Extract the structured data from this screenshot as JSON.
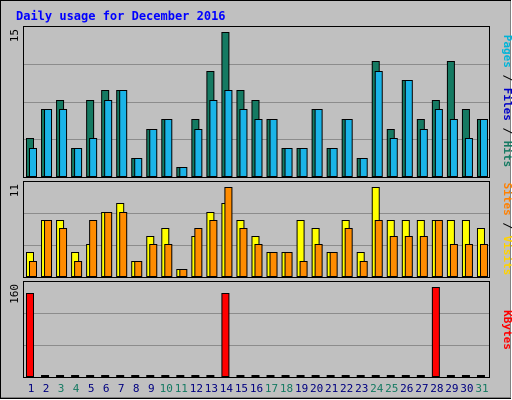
{
  "title": "Daily usage for December 2016",
  "colors": {
    "background": "#c0c0c0",
    "border": "#000000",
    "title": "#0000ff",
    "grid": "#8c8c8c",
    "hits": "#157a62",
    "files": "#1ab4e8",
    "sites": "#ffff00",
    "visits": "#ff8c00",
    "kbytes": "#ff0000",
    "weekend_label": "#157a62",
    "weekday_label": "#000080"
  },
  "side_labels": {
    "top": [
      {
        "text": "Pages",
        "color": "#00b4d8"
      },
      {
        "text": " / ",
        "color": "#000000"
      },
      {
        "text": "Files",
        "color": "#0000c8"
      },
      {
        "text": " / ",
        "color": "#000000"
      },
      {
        "text": "Hits",
        "color": "#157a62"
      }
    ],
    "mid": [
      {
        "text": "Sites",
        "color": "#ff8000"
      },
      {
        "text": " / ",
        "color": "#000000"
      },
      {
        "text": "Visits",
        "color": "#ffd200"
      }
    ],
    "bot": [
      {
        "text": "KBytes",
        "color": "#ff0000"
      }
    ]
  },
  "chart_data": {
    "type": "bar",
    "categories": [
      "1",
      "2",
      "3",
      "4",
      "5",
      "6",
      "7",
      "8",
      "9",
      "10",
      "11",
      "12",
      "13",
      "14",
      "15",
      "16",
      "17",
      "18",
      "19",
      "20",
      "21",
      "22",
      "23",
      "24",
      "25",
      "26",
      "27",
      "28",
      "29",
      "30",
      "31"
    ],
    "weekend_days": [
      "3",
      "4",
      "10",
      "11",
      "17",
      "18",
      "24",
      "25",
      "31"
    ],
    "panels": [
      {
        "name": "top",
        "ymax": 15,
        "ymax_label": "15",
        "series": [
          {
            "name": "Hits",
            "values": [
              4,
              7,
              8,
              3,
              8,
              9,
              9,
              2,
              5,
              6,
              1,
              6,
              11,
              15,
              9,
              8,
              6,
              3,
              3,
              7,
              3,
              6,
              2,
              12,
              5,
              10,
              6,
              8,
              12,
              7,
              6
            ]
          },
          {
            "name": "Files",
            "values": [
              3,
              7,
              7,
              3,
              4,
              8,
              9,
              2,
              5,
              6,
              1,
              5,
              8,
              9,
              7,
              6,
              6,
              3,
              3,
              7,
              3,
              6,
              2,
              11,
              4,
              10,
              5,
              7,
              6,
              4,
              6
            ]
          }
        ]
      },
      {
        "name": "mid",
        "ymax": 11,
        "ymax_label": "11",
        "series": [
          {
            "name": "Visits",
            "values": [
              3,
              7,
              7,
              3,
              4,
              8,
              9,
              2,
              5,
              6,
              1,
              5,
              8,
              9,
              7,
              5,
              3,
              3,
              7,
              6,
              3,
              7,
              3,
              11,
              7,
              7,
              7,
              7,
              7,
              7,
              6
            ]
          },
          {
            "name": "Sites",
            "values": [
              2,
              7,
              6,
              2,
              7,
              8,
              8,
              2,
              4,
              4,
              1,
              6,
              7,
              11,
              6,
              4,
              3,
              3,
              2,
              4,
              3,
              6,
              2,
              7,
              5,
              5,
              5,
              7,
              4,
              4,
              4
            ]
          }
        ]
      },
      {
        "name": "bot",
        "ymax": 160,
        "ymax_label": "160",
        "series": [
          {
            "name": "KBytes",
            "values": [
              150,
              0,
              0,
              0,
              0,
              0,
              0,
              0,
              0,
              0,
              0,
              0,
              0,
              150,
              0,
              0,
              0,
              0,
              0,
              0,
              0,
              0,
              0,
              0,
              0,
              0,
              0,
              160,
              0,
              0,
              0
            ]
          }
        ]
      }
    ]
  }
}
